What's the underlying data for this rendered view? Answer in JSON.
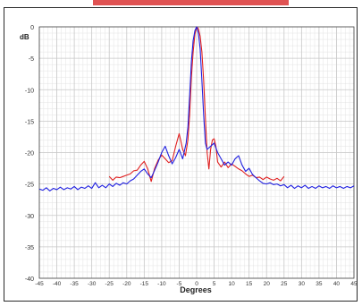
{
  "chart_data": {
    "type": "line",
    "title": "",
    "xlabel": "Degrees",
    "ylabel": "dB",
    "xlim": [
      -45,
      45
    ],
    "ylim": [
      -40,
      0
    ],
    "x_ticks": [
      -45,
      -40,
      -35,
      -30,
      -25,
      -20,
      -15,
      -10,
      -5,
      0,
      5,
      10,
      15,
      20,
      25,
      30,
      35,
      40,
      45
    ],
    "y_ticks": [
      0,
      -5,
      -10,
      -15,
      -20,
      -25,
      -30,
      -35,
      -40
    ],
    "grid": true,
    "colors": {
      "red": "#e02020",
      "blue": "#2020e0",
      "grid": "#c8c8c8",
      "axis": "#444444"
    },
    "series": [
      {
        "color": "red",
        "points": [
          [
            -25,
            -23.8
          ],
          [
            -24,
            -24.4
          ],
          [
            -23,
            -23.9
          ],
          [
            -22,
            -24.0
          ],
          [
            -21,
            -23.8
          ],
          [
            -20,
            -23.6
          ],
          [
            -19,
            -23.4
          ],
          [
            -18,
            -22.9
          ],
          [
            -17,
            -22.8
          ],
          [
            -16,
            -22.0
          ],
          [
            -15,
            -21.4
          ],
          [
            -14,
            -22.6
          ],
          [
            -13,
            -24.6
          ],
          [
            -12,
            -22.5
          ],
          [
            -11,
            -21.2
          ],
          [
            -10,
            -20.4
          ],
          [
            -9,
            -21.0
          ],
          [
            -8,
            -21.6
          ],
          [
            -7,
            -21.3
          ],
          [
            -6,
            -19.0
          ],
          [
            -5,
            -17.0
          ],
          [
            -4.5,
            -18.2
          ],
          [
            -4,
            -19.5
          ],
          [
            -3.2,
            -20.5
          ],
          [
            -2.5,
            -18.0
          ],
          [
            -2,
            -14.0
          ],
          [
            -1.5,
            -8.0
          ],
          [
            -1,
            -4.0
          ],
          [
            -0.5,
            -1.2
          ],
          [
            0,
            0
          ],
          [
            0.5,
            -0.3
          ],
          [
            1,
            -1.5
          ],
          [
            1.5,
            -4.0
          ],
          [
            2,
            -8.5
          ],
          [
            2.5,
            -14.5
          ],
          [
            3,
            -20.0
          ],
          [
            3.5,
            -22.6
          ],
          [
            4,
            -19.5
          ],
          [
            4.5,
            -18.0
          ],
          [
            5,
            -17.8
          ],
          [
            5.5,
            -19.0
          ],
          [
            6,
            -21.5
          ],
          [
            7,
            -22.3
          ],
          [
            8,
            -21.5
          ],
          [
            9,
            -22.4
          ],
          [
            10,
            -21.8
          ],
          [
            11,
            -22.2
          ],
          [
            12,
            -22.6
          ],
          [
            13,
            -22.9
          ],
          [
            14,
            -23.4
          ],
          [
            15,
            -23.8
          ],
          [
            16,
            -23.6
          ],
          [
            17,
            -24.0
          ],
          [
            18,
            -23.9
          ],
          [
            19,
            -24.3
          ],
          [
            20,
            -23.9
          ],
          [
            21,
            -24.2
          ],
          [
            22,
            -24.4
          ],
          [
            23,
            -24.1
          ],
          [
            24,
            -24.5
          ],
          [
            25,
            -23.8
          ]
        ]
      },
      {
        "color": "blue",
        "points": [
          [
            -45,
            -25.8
          ],
          [
            -44,
            -26.0
          ],
          [
            -43,
            -25.6
          ],
          [
            -42,
            -26.1
          ],
          [
            -41,
            -25.7
          ],
          [
            -40,
            -25.9
          ],
          [
            -39,
            -25.5
          ],
          [
            -38,
            -25.9
          ],
          [
            -37,
            -25.6
          ],
          [
            -36,
            -25.8
          ],
          [
            -35,
            -25.4
          ],
          [
            -34,
            -25.9
          ],
          [
            -33,
            -25.5
          ],
          [
            -32,
            -25.7
          ],
          [
            -31,
            -25.3
          ],
          [
            -30,
            -25.7
          ],
          [
            -29,
            -24.8
          ],
          [
            -28,
            -25.6
          ],
          [
            -27,
            -25.2
          ],
          [
            -26,
            -25.6
          ],
          [
            -25,
            -25.0
          ],
          [
            -24,
            -25.4
          ],
          [
            -23,
            -24.9
          ],
          [
            -22,
            -25.2
          ],
          [
            -21,
            -24.8
          ],
          [
            -20,
            -25.0
          ],
          [
            -19,
            -24.5
          ],
          [
            -18,
            -24.2
          ],
          [
            -17,
            -23.6
          ],
          [
            -16,
            -23.0
          ],
          [
            -15,
            -22.6
          ],
          [
            -14,
            -23.4
          ],
          [
            -13,
            -24.0
          ],
          [
            -12,
            -22.8
          ],
          [
            -11,
            -21.5
          ],
          [
            -10,
            -20.0
          ],
          [
            -9,
            -19.0
          ],
          [
            -8,
            -20.5
          ],
          [
            -7,
            -21.8
          ],
          [
            -6,
            -20.8
          ],
          [
            -5,
            -19.5
          ],
          [
            -4,
            -21.0
          ],
          [
            -3,
            -18.5
          ],
          [
            -2.5,
            -16.0
          ],
          [
            -2,
            -11.0
          ],
          [
            -1.5,
            -5.5
          ],
          [
            -1,
            -2.2
          ],
          [
            -0.5,
            -0.6
          ],
          [
            0,
            0
          ],
          [
            0.5,
            -1.0
          ],
          [
            1,
            -3.5
          ],
          [
            1.5,
            -8.5
          ],
          [
            2,
            -14.0
          ],
          [
            2.5,
            -18.5
          ],
          [
            3,
            -19.5
          ],
          [
            4,
            -19.0
          ],
          [
            5,
            -18.5
          ],
          [
            6,
            -20.0
          ],
          [
            7,
            -21.0
          ],
          [
            8,
            -22.0
          ],
          [
            9,
            -21.5
          ],
          [
            10,
            -22.0
          ],
          [
            11,
            -21.0
          ],
          [
            12,
            -20.5
          ],
          [
            13,
            -22.0
          ],
          [
            14,
            -23.0
          ],
          [
            15,
            -22.5
          ],
          [
            16,
            -23.5
          ],
          [
            17,
            -24.0
          ],
          [
            18,
            -24.5
          ],
          [
            19,
            -24.9
          ],
          [
            20,
            -25.0
          ],
          [
            21,
            -24.8
          ],
          [
            22,
            -25.1
          ],
          [
            23,
            -25.0
          ],
          [
            24,
            -25.3
          ],
          [
            25,
            -25.1
          ],
          [
            26,
            -25.6
          ],
          [
            27,
            -25.2
          ],
          [
            28,
            -25.7
          ],
          [
            29,
            -25.3
          ],
          [
            30,
            -25.6
          ],
          [
            31,
            -25.2
          ],
          [
            32,
            -25.7
          ],
          [
            33,
            -25.4
          ],
          [
            34,
            -25.7
          ],
          [
            35,
            -25.3
          ],
          [
            36,
            -25.6
          ],
          [
            37,
            -25.4
          ],
          [
            38,
            -25.7
          ],
          [
            39,
            -25.3
          ],
          [
            40,
            -25.6
          ],
          [
            41,
            -25.4
          ],
          [
            42,
            -25.7
          ],
          [
            43,
            -25.4
          ],
          [
            44,
            -25.6
          ],
          [
            45,
            -25.3
          ]
        ]
      }
    ]
  }
}
